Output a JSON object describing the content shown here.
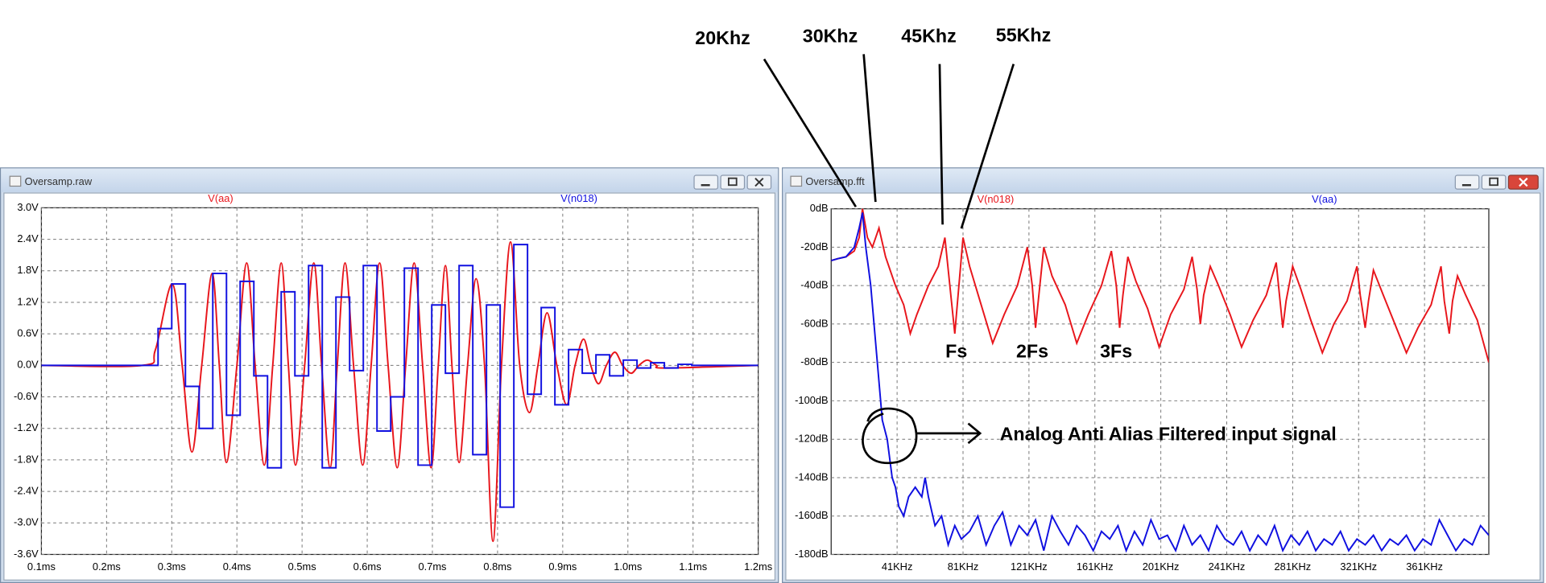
{
  "windows": [
    {
      "title": "Oversamp.raw"
    },
    {
      "title": "Oversamp.fft"
    }
  ],
  "annotations": [
    {
      "text": "20Khz"
    },
    {
      "text": "30Khz"
    },
    {
      "text": "45Khz"
    },
    {
      "text": "55Khz"
    },
    {
      "text": "Fs"
    },
    {
      "text": "2Fs"
    },
    {
      "text": "3Fs"
    },
    {
      "text": "Analog Anti Alias Filtered input signal"
    }
  ],
  "chart_data": [
    {
      "type": "line",
      "grid": true,
      "xlim": [
        0.1,
        1.2
      ],
      "xticks": [
        {
          "value": 0.1,
          "label": "0.1ms"
        },
        {
          "value": 0.2,
          "label": "0.2ms"
        },
        {
          "value": 0.3,
          "label": "0.3ms"
        },
        {
          "value": 0.4,
          "label": "0.4ms"
        },
        {
          "value": 0.5,
          "label": "0.5ms"
        },
        {
          "value": 0.6,
          "label": "0.6ms"
        },
        {
          "value": 0.7,
          "label": "0.7ms"
        },
        {
          "value": 0.8,
          "label": "0.8ms"
        },
        {
          "value": 0.9,
          "label": "0.9ms"
        },
        {
          "value": 1.0,
          "label": "1.0ms"
        },
        {
          "value": 1.1,
          "label": "1.1ms"
        },
        {
          "value": 1.2,
          "label": "1.2ms"
        }
      ],
      "ylim": [
        -3.6,
        3.0
      ],
      "yticks": [
        {
          "value": 3.0,
          "label": "3.0V"
        },
        {
          "value": 2.4,
          "label": "2.4V"
        },
        {
          "value": 1.8,
          "label": "1.8V"
        },
        {
          "value": 1.2,
          "label": "1.2V"
        },
        {
          "value": 0.6,
          "label": "0.6V"
        },
        {
          "value": 0,
          "label": "0.0V"
        },
        {
          "value": -0.6,
          "label": "-0.6V"
        },
        {
          "value": -1.2,
          "label": "-1.2V"
        },
        {
          "value": -1.8,
          "label": "-1.8V"
        },
        {
          "value": -2.4,
          "label": "-2.4V"
        },
        {
          "value": -3.0,
          "label": "-3.0V"
        },
        {
          "value": -3.6,
          "label": "-3.6V"
        }
      ],
      "series": [
        {
          "name": "V(aa)",
          "color": "#e8161c",
          "drawstyle": "smooth",
          "x": [
            0.1,
            0.255,
            0.275,
            0.301,
            0.316,
            0.331,
            0.346,
            0.362,
            0.373,
            0.384,
            0.4,
            0.415,
            0.428,
            0.442,
            0.455,
            0.468,
            0.479,
            0.49,
            0.504,
            0.518,
            0.53,
            0.543,
            0.554,
            0.566,
            0.579,
            0.593,
            0.606,
            0.619,
            0.632,
            0.646,
            0.659,
            0.672,
            0.685,
            0.698,
            0.709,
            0.72,
            0.73,
            0.741,
            0.754,
            0.767,
            0.78,
            0.793,
            0.806,
            0.82,
            0.834,
            0.849,
            0.862,
            0.876,
            0.891,
            0.906,
            0.919,
            0.932,
            0.943,
            0.955,
            0.967,
            0.98,
            0.992,
            1.005,
            1.017,
            1.03,
            1.044,
            1.058,
            1.2
          ],
          "values": [
            0,
            0,
            0.3,
            1.55,
            0,
            -1.65,
            0,
            1.75,
            0,
            -1.85,
            0,
            1.95,
            0,
            -1.9,
            0,
            1.95,
            0,
            -1.9,
            0,
            1.95,
            0,
            -1.95,
            0,
            1.95,
            0,
            -1.9,
            0,
            1.95,
            0,
            -1.95,
            0,
            1.95,
            0,
            -1.95,
            0,
            1.9,
            0,
            -1.85,
            0,
            1.65,
            0,
            -3.35,
            0,
            2.35,
            0,
            -0.9,
            0,
            1.0,
            0,
            -0.75,
            0,
            0.5,
            0,
            -0.35,
            0,
            0.25,
            0,
            -0.15,
            0,
            0.1,
            0,
            -0.05,
            0
          ]
        },
        {
          "name": "V(n018)",
          "color": "#1010e0",
          "drawstyle": "steps",
          "x": [
            0.1,
            0.279,
            0.3,
            0.321,
            0.342,
            0.363,
            0.384,
            0.405,
            0.426,
            0.447,
            0.468,
            0.489,
            0.51,
            0.531,
            0.552,
            0.573,
            0.594,
            0.615,
            0.636,
            0.657,
            0.678,
            0.699,
            0.72,
            0.741,
            0.762,
            0.783,
            0.804,
            0.825,
            0.846,
            0.867,
            0.888,
            0.909,
            0.93,
            0.951,
            0.972,
            0.993,
            1.014,
            1.035,
            1.056,
            1.077,
            1.098,
            1.2
          ],
          "values": [
            0,
            0.7,
            1.55,
            -0.4,
            -1.2,
            1.75,
            -0.95,
            1.6,
            -0.2,
            -1.95,
            1.4,
            -0.2,
            1.9,
            -1.95,
            1.3,
            -0.1,
            1.9,
            -1.25,
            -0.6,
            1.85,
            -1.9,
            1.15,
            -0.15,
            1.9,
            -1.7,
            1.15,
            -2.7,
            2.3,
            -0.55,
            1.1,
            -0.75,
            0.3,
            -0.15,
            0.2,
            -0.2,
            0.1,
            -0.05,
            0.05,
            -0.05,
            0.02,
            0,
            0
          ]
        }
      ]
    },
    {
      "type": "line",
      "grid": true,
      "xlim": [
        1,
        400
      ],
      "xticks": [
        {
          "value": 41,
          "label": "41KHz"
        },
        {
          "value": 81,
          "label": "81KHz"
        },
        {
          "value": 121,
          "label": "121KHz"
        },
        {
          "value": 161,
          "label": "161KHz"
        },
        {
          "value": 201,
          "label": "201KHz"
        },
        {
          "value": 241,
          "label": "241KHz"
        },
        {
          "value": 281,
          "label": "281KHz"
        },
        {
          "value": 321,
          "label": "321KHz"
        },
        {
          "value": 361,
          "label": "361KHz"
        }
      ],
      "ylim": [
        -180,
        0
      ],
      "yticks": [
        {
          "value": 0,
          "label": "0dB"
        },
        {
          "value": -20,
          "label": "-20dB"
        },
        {
          "value": -40,
          "label": "-40dB"
        },
        {
          "value": -60,
          "label": "-60dB"
        },
        {
          "value": -80,
          "label": "-80dB"
        },
        {
          "value": -100,
          "label": "-100dB"
        },
        {
          "value": -120,
          "label": "-120dB"
        },
        {
          "value": -140,
          "label": "-140dB"
        },
        {
          "value": -160,
          "label": "-160dB"
        },
        {
          "value": -180,
          "label": "-180dB"
        }
      ],
      "series": [
        {
          "name": "V(n018)",
          "color": "#e8161c",
          "x": [
            1,
            5,
            10,
            15,
            18,
            20,
            23,
            26,
            30,
            34,
            40,
            45,
            49,
            53,
            60,
            66,
            70,
            73,
            76,
            78,
            81,
            85,
            92,
            99,
            106,
            114,
            120,
            123,
            125,
            127,
            130,
            135,
            143,
            150,
            157,
            165,
            171,
            174,
            176,
            178,
            181,
            186,
            193,
            200,
            207,
            215,
            220,
            223,
            225,
            227,
            231,
            236,
            243,
            250,
            257,
            265,
            271,
            273,
            275,
            277,
            281,
            286,
            292,
            299,
            306,
            314,
            320,
            322,
            325,
            327,
            330,
            336,
            343,
            350,
            357,
            365,
            371,
            373,
            376,
            378,
            381,
            386,
            393,
            400
          ],
          "values": [
            -27,
            -26,
            -25,
            -22,
            -15,
            0,
            -15,
            -20,
            -10,
            -25,
            -40,
            -50,
            -65,
            -55,
            -40,
            -30,
            -15,
            -40,
            -65,
            -45,
            -15,
            -30,
            -50,
            -70,
            -55,
            -40,
            -20,
            -40,
            -62,
            -45,
            -20,
            -35,
            -50,
            -70,
            -55,
            -40,
            -22,
            -40,
            -62,
            -45,
            -25,
            -38,
            -52,
            -72,
            -55,
            -42,
            -25,
            -42,
            -60,
            -45,
            -30,
            -40,
            -55,
            -72,
            -58,
            -45,
            -28,
            -45,
            -62,
            -48,
            -30,
            -42,
            -58,
            -75,
            -60,
            -48,
            -30,
            -45,
            -62,
            -48,
            -32,
            -45,
            -60,
            -75,
            -62,
            -50,
            -30,
            -48,
            -65,
            -48,
            -35,
            -45,
            -58,
            -80
          ]
        },
        {
          "name": "V(aa)",
          "color": "#1010e0",
          "x": [
            1,
            5,
            10,
            15,
            18,
            20,
            22,
            25,
            28,
            30,
            32,
            35,
            38,
            40,
            42,
            45,
            48,
            52,
            56,
            58,
            60,
            64,
            68,
            72,
            76,
            80,
            85,
            90,
            95,
            100,
            105,
            110,
            115,
            120,
            125,
            130,
            135,
            140,
            145,
            150,
            155,
            160,
            165,
            170,
            175,
            180,
            185,
            190,
            195,
            200,
            205,
            210,
            215,
            220,
            225,
            230,
            235,
            240,
            245,
            250,
            255,
            260,
            265,
            270,
            275,
            280,
            285,
            290,
            295,
            300,
            305,
            310,
            315,
            320,
            325,
            330,
            335,
            340,
            345,
            350,
            355,
            360,
            365,
            370,
            375,
            380,
            385,
            390,
            395,
            400
          ],
          "values": [
            -27,
            -26,
            -25,
            -20,
            -10,
            -2,
            -20,
            -40,
            -70,
            -90,
            -110,
            -120,
            -140,
            -145,
            -155,
            -160,
            -150,
            -145,
            -150,
            -140,
            -150,
            -165,
            -160,
            -175,
            -165,
            -172,
            -168,
            -160,
            -175,
            -165,
            -158,
            -175,
            -165,
            -170,
            -162,
            -178,
            -160,
            -168,
            -175,
            -165,
            -170,
            -178,
            -168,
            -172,
            -165,
            -178,
            -168,
            -175,
            -162,
            -172,
            -170,
            -178,
            -165,
            -175,
            -170,
            -178,
            -165,
            -172,
            -175,
            -168,
            -178,
            -170,
            -175,
            -165,
            -178,
            -170,
            -175,
            -168,
            -178,
            -172,
            -175,
            -168,
            -178,
            -172,
            -175,
            -170,
            -178,
            -172,
            -175,
            -170,
            -178,
            -172,
            -175,
            -162,
            -170,
            -178,
            -172,
            -175,
            -165,
            -170
          ]
        }
      ]
    }
  ]
}
